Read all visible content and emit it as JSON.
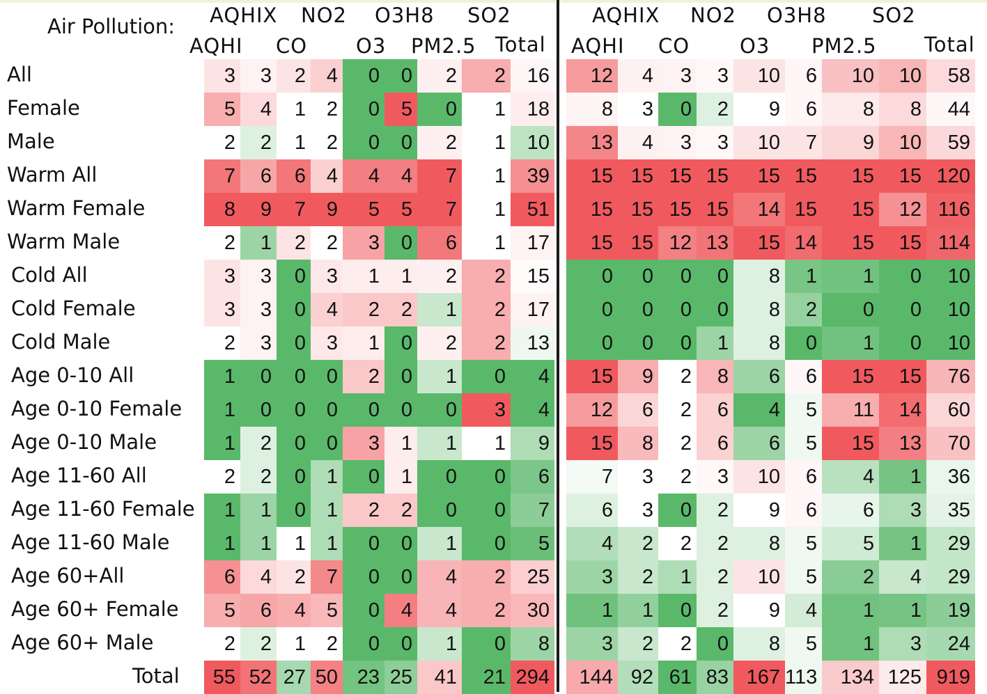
{
  "chart_data": {
    "type": "heatmap",
    "title": "Air Pollution:",
    "header_top": [
      "AQHIX",
      "NO2",
      "O3H8",
      "SO2"
    ],
    "header_bottom": [
      "AQHI",
      "CO",
      "O3",
      "PM2.5",
      "Total"
    ],
    "rows": [
      "All",
      "Female",
      "Male",
      "Warm All",
      "Warm Female",
      "Warm Male",
      "Cold All",
      "Cold Female",
      "Cold Male",
      "Age 0-10 All",
      "Age 0-10 Female",
      "Age 0-10 Male",
      "Age 11-60 All",
      "Age 11-60 Female",
      "Age 11-60 Male",
      "Age 60+All",
      "Age 60+ Female",
      "Age 60+ Male",
      "Total"
    ],
    "colors": {
      "low": "#5ab86a",
      "mid": "#ffffff",
      "high": "#f05a5e"
    },
    "panels": [
      {
        "values": [
          [
            3,
            3,
            2,
            4,
            0,
            0,
            2,
            2,
            16
          ],
          [
            5,
            4,
            1,
            2,
            0,
            5,
            0,
            1,
            18
          ],
          [
            2,
            2,
            1,
            2,
            0,
            0,
            2,
            1,
            10
          ],
          [
            7,
            6,
            6,
            4,
            4,
            4,
            7,
            1,
            39
          ],
          [
            8,
            9,
            7,
            9,
            5,
            5,
            7,
            1,
            51
          ],
          [
            2,
            1,
            2,
            2,
            3,
            0,
            6,
            1,
            17
          ],
          [
            3,
            3,
            0,
            3,
            1,
            1,
            2,
            2,
            15
          ],
          [
            3,
            3,
            0,
            4,
            2,
            2,
            1,
            2,
            17
          ],
          [
            2,
            3,
            0,
            3,
            1,
            0,
            2,
            2,
            13
          ],
          [
            1,
            0,
            0,
            0,
            2,
            0,
            1,
            0,
            4
          ],
          [
            1,
            0,
            0,
            0,
            0,
            0,
            0,
            3,
            4
          ],
          [
            1,
            2,
            0,
            0,
            3,
            1,
            1,
            1,
            9
          ],
          [
            2,
            2,
            0,
            1,
            0,
            1,
            0,
            0,
            6
          ],
          [
            1,
            1,
            0,
            1,
            2,
            2,
            0,
            0,
            7
          ],
          [
            1,
            1,
            1,
            1,
            0,
            0,
            1,
            0,
            5
          ],
          [
            6,
            4,
            2,
            7,
            0,
            0,
            4,
            2,
            25
          ],
          [
            5,
            6,
            4,
            5,
            0,
            4,
            4,
            2,
            30
          ],
          [
            2,
            2,
            1,
            2,
            0,
            0,
            1,
            0,
            8
          ],
          [
            55,
            52,
            27,
            50,
            23,
            25,
            41,
            21,
            294
          ]
        ]
      },
      {
        "values": [
          [
            12,
            4,
            3,
            3,
            10,
            6,
            10,
            10,
            58
          ],
          [
            8,
            3,
            0,
            2,
            9,
            6,
            8,
            8,
            44
          ],
          [
            13,
            4,
            3,
            3,
            10,
            7,
            9,
            10,
            59
          ],
          [
            15,
            15,
            15,
            15,
            15,
            15,
            15,
            15,
            120
          ],
          [
            15,
            15,
            15,
            15,
            14,
            15,
            15,
            12,
            116
          ],
          [
            15,
            15,
            12,
            13,
            15,
            14,
            15,
            15,
            114
          ],
          [
            0,
            0,
            0,
            0,
            8,
            1,
            1,
            0,
            10
          ],
          [
            0,
            0,
            0,
            0,
            8,
            2,
            0,
            0,
            10
          ],
          [
            0,
            0,
            0,
            1,
            8,
            0,
            1,
            0,
            10
          ],
          [
            15,
            9,
            2,
            8,
            6,
            6,
            15,
            15,
            76
          ],
          [
            12,
            6,
            2,
            6,
            4,
            5,
            11,
            14,
            60
          ],
          [
            15,
            8,
            2,
            6,
            6,
            5,
            15,
            13,
            70
          ],
          [
            7,
            3,
            2,
            3,
            10,
            6,
            4,
            1,
            36
          ],
          [
            6,
            3,
            0,
            2,
            9,
            6,
            6,
            3,
            35
          ],
          [
            4,
            2,
            2,
            2,
            8,
            5,
            5,
            1,
            29
          ],
          [
            3,
            2,
            1,
            2,
            10,
            5,
            2,
            4,
            29
          ],
          [
            1,
            1,
            0,
            2,
            9,
            4,
            1,
            1,
            19
          ],
          [
            3,
            2,
            2,
            0,
            8,
            5,
            1,
            3,
            24
          ],
          [
            144,
            92,
            61,
            83,
            167,
            113,
            134,
            125,
            919
          ]
        ]
      }
    ]
  }
}
